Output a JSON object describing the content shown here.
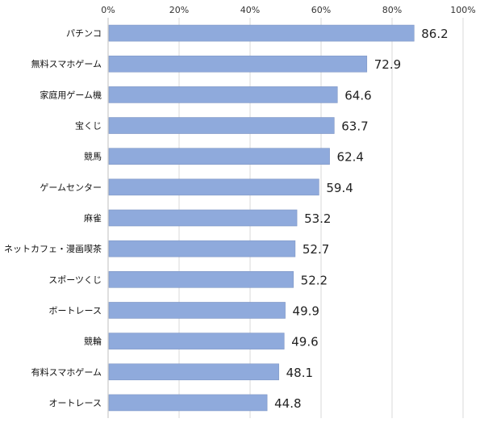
{
  "chart_data": {
    "type": "bar",
    "orientation": "horizontal",
    "title": "",
    "xlabel": "",
    "ylabel": "",
    "xlim": [
      0,
      100
    ],
    "x_ticks": [
      "0%",
      "20%",
      "40%",
      "60%",
      "80%",
      "100%"
    ],
    "x_tick_values": [
      0,
      20,
      40,
      60,
      80,
      100
    ],
    "grid": true,
    "bar_color": "#8faadc",
    "categories": [
      "パチンコ",
      "無料スマホゲーム",
      "家庭用ゲーム機",
      "宝くじ",
      "競馬",
      "ゲームセンター",
      "麻雀",
      "ネットカフェ・漫画喫茶",
      "スポーツくじ",
      "ボートレース",
      "競輪",
      "有料スマホゲーム",
      "オートレース"
    ],
    "values": [
      86.2,
      72.9,
      64.6,
      63.7,
      62.4,
      59.4,
      53.2,
      52.7,
      52.2,
      49.9,
      49.6,
      48.1,
      44.8
    ],
    "value_labels": [
      "86.2",
      "72.9",
      "64.6",
      "63.7",
      "62.4",
      "59.4",
      "53.2",
      "52.7",
      "52.2",
      "49.9",
      "49.6",
      "48.1",
      "44.8"
    ]
  }
}
